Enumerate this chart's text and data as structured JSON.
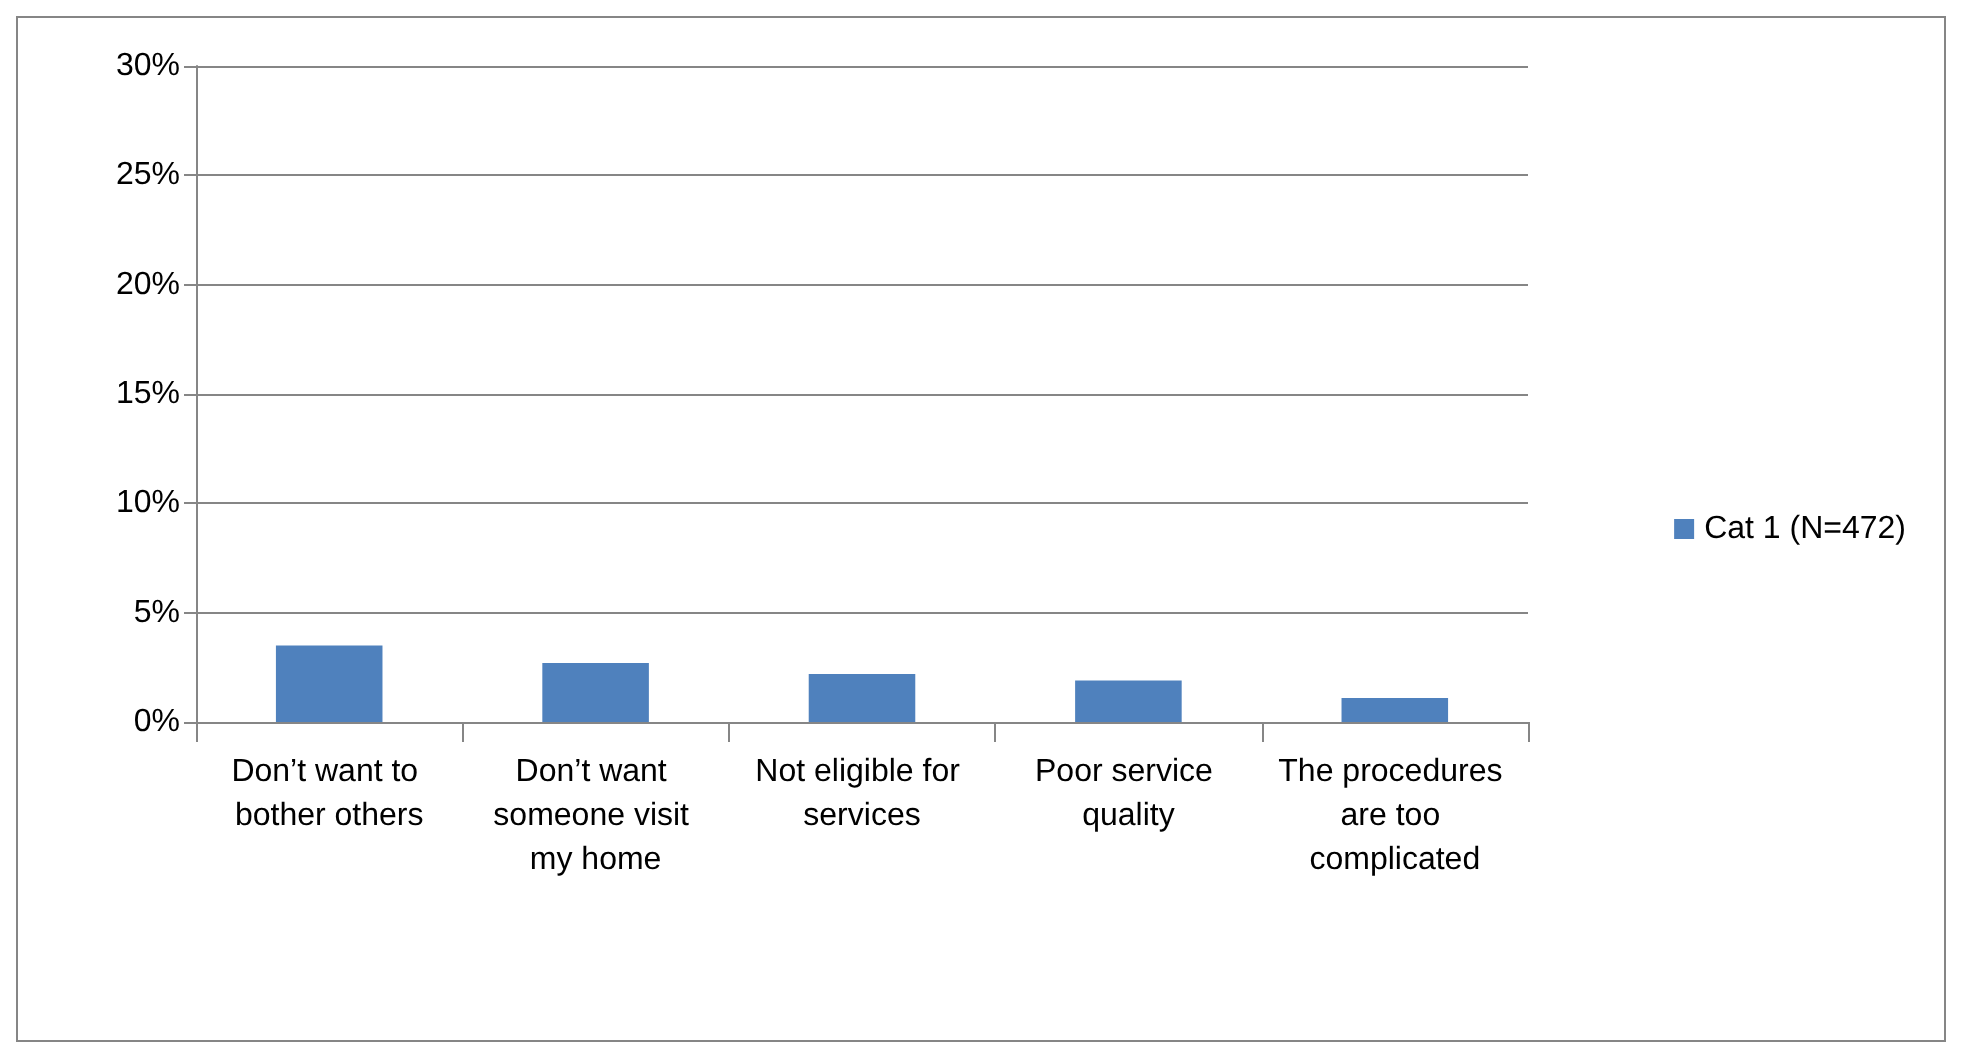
{
  "chart_data": {
    "type": "bar",
    "categories": [
      "Don’t want to bother others",
      "Don’t want someone visit my home",
      "Not eligible for services",
      "Poor service quality",
      "The procedures are too complicated"
    ],
    "series": [
      {
        "name": "Cat 1 (N=472)",
        "color": "#4f81bd",
        "values": [
          3.5,
          2.7,
          2.2,
          1.9,
          1.1
        ]
      }
    ],
    "ylim": [
      0,
      30
    ],
    "yticks": [
      {
        "value": 0,
        "label": "0%"
      },
      {
        "value": 5,
        "label": "5%"
      },
      {
        "value": 10,
        "label": "10%"
      },
      {
        "value": 15,
        "label": "15%"
      },
      {
        "value": 20,
        "label": "20%"
      },
      {
        "value": 25,
        "label": "25%"
      },
      {
        "value": 30,
        "label": "30%"
      }
    ],
    "grid": "y",
    "legend": "right"
  }
}
